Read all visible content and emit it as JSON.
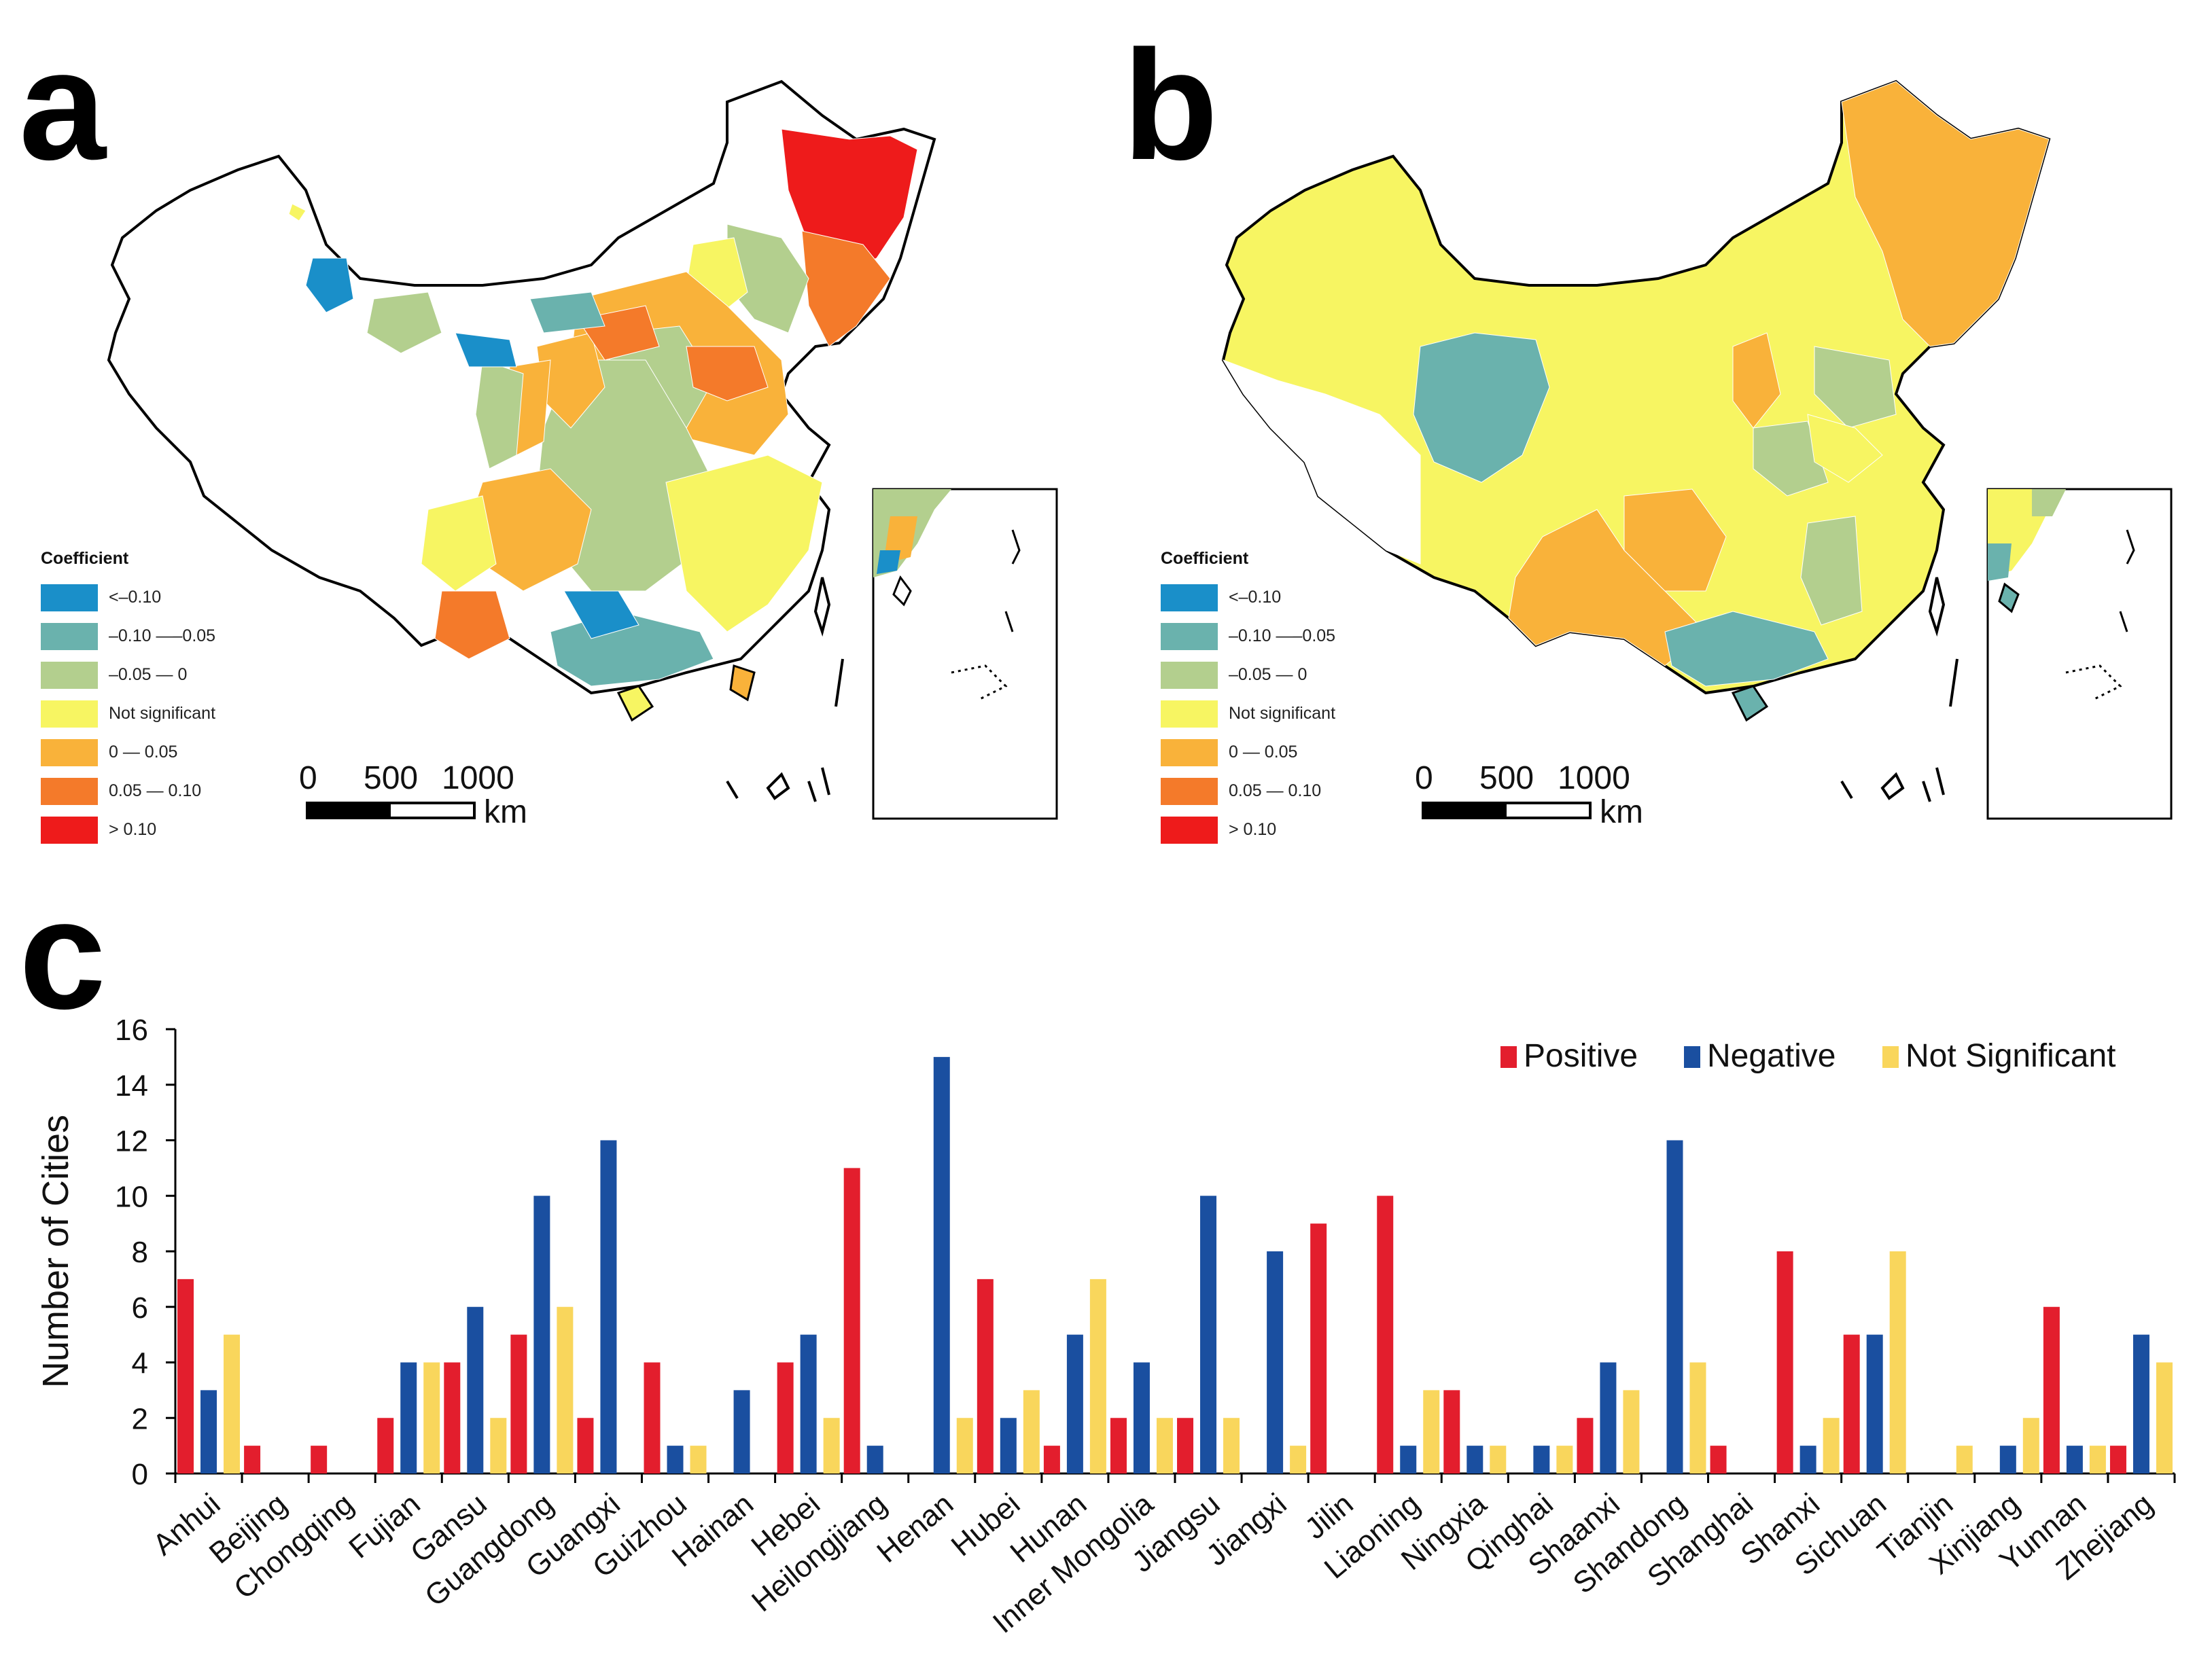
{
  "panels": {
    "a": {
      "label": "a"
    },
    "b": {
      "label": "b"
    },
    "c": {
      "label": "c"
    }
  },
  "legend": {
    "title": "Coefficient",
    "items": [
      {
        "label": "<–0.10",
        "color": "#1a8fc9"
      },
      {
        "label": "–0.10 —–0.05",
        "color": "#6ab2ad"
      },
      {
        "label": "–0.05 — 0",
        "color": "#b3cf8e"
      },
      {
        "label": "Not significant",
        "color": "#f7f562"
      },
      {
        "label": "0 — 0.05",
        "color": "#f9b23a"
      },
      {
        "label": "0.05 — 0.10",
        "color": "#f47a2a"
      },
      {
        "label": "> 0.10",
        "color": "#ee1b1b"
      }
    ]
  },
  "scalebar": {
    "ticks": [
      "0",
      "500",
      "1000"
    ],
    "unit": "km"
  },
  "chart_data": {
    "type": "bar",
    "title": "",
    "xlabel": "",
    "ylabel": "Number of Cities",
    "ylim": [
      0,
      16
    ],
    "yticks": [
      0,
      2,
      4,
      6,
      8,
      10,
      12,
      14,
      16
    ],
    "legend_position": "top-right",
    "categories": [
      "Anhui",
      "Beijing",
      "Chongqing",
      "Fujian",
      "Gansu",
      "Guangdong",
      "Guangxi",
      "Guizhou",
      "Hainan",
      "Hebei",
      "Heilongjiang",
      "Henan",
      "Hubei",
      "Hunan",
      "Inner Mongolia",
      "Jiangsu",
      "Jiangxi",
      "Jilin",
      "Liaoning",
      "Ningxia",
      "Qinghai",
      "Shaanxi",
      "Shandong",
      "Shanghai",
      "Shanxi",
      "Sichuan",
      "Tianjin",
      "Xinjiang",
      "Yunnan",
      "Zhejiang"
    ],
    "series": [
      {
        "name": "Positive",
        "color": "#e31e2d",
        "values": [
          7,
          1,
          1,
          2,
          4,
          5,
          2,
          4,
          0,
          4,
          11,
          0,
          7,
          1,
          2,
          2,
          0,
          9,
          10,
          3,
          0,
          2,
          0,
          1,
          8,
          5,
          0,
          0,
          6,
          1
        ]
      },
      {
        "name": "Negative",
        "color": "#1a4fa0",
        "values": [
          3,
          0,
          0,
          4,
          6,
          10,
          12,
          1,
          3,
          5,
          1,
          15,
          2,
          5,
          4,
          10,
          8,
          0,
          1,
          1,
          1,
          4,
          12,
          0,
          1,
          5,
          0,
          1,
          1,
          5
        ]
      },
      {
        "name": "Not Significant",
        "color": "#f9d65c",
        "values": [
          5,
          0,
          0,
          4,
          2,
          6,
          0,
          1,
          0,
          2,
          0,
          2,
          3,
          7,
          2,
          2,
          1,
          0,
          3,
          1,
          1,
          3,
          4,
          0,
          2,
          8,
          1,
          2,
          1,
          4
        ]
      }
    ]
  }
}
